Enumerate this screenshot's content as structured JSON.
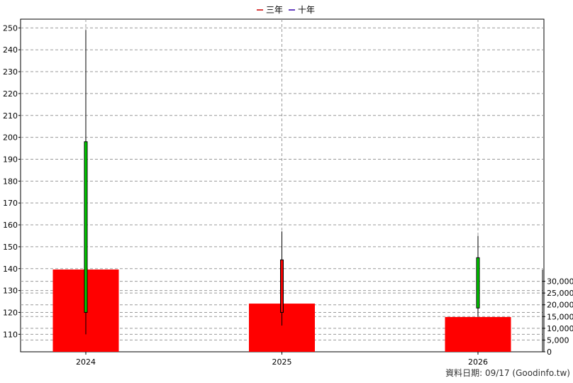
{
  "chart_data": {
    "type": "candlestick_with_bars",
    "legend": [
      {
        "label": "三年",
        "color": "#cc0000"
      },
      {
        "label": "十年",
        "color": "#3300aa"
      }
    ],
    "categories": [
      "2024",
      "2025",
      "2026"
    ],
    "price_axis": {
      "ylim": [
        102,
        254
      ],
      "ticks": [
        110,
        120,
        130,
        140,
        150,
        160,
        170,
        180,
        190,
        200,
        210,
        220,
        230,
        240,
        250
      ]
    },
    "volume_axis": {
      "ylim": [
        0,
        35000
      ],
      "ticks": [
        0,
        5000,
        10000,
        15000,
        20000,
        25000,
        30000
      ],
      "tick_labels": [
        "0",
        "5,000",
        "10,000",
        "15,000",
        "20,000",
        "25,000",
        "30,000"
      ]
    },
    "candles": [
      {
        "x": "2024",
        "open": 120,
        "close": 198,
        "high": 249,
        "low": 110,
        "color": "#00cc00"
      },
      {
        "x": "2025",
        "open": 144,
        "close": 120,
        "high": 157,
        "low": 114,
        "color": "#ee0000"
      },
      {
        "x": "2026",
        "open": 122,
        "close": 145,
        "high": 155,
        "low": 118,
        "color": "#00cc00"
      }
    ],
    "volumes": [
      {
        "x": "2024",
        "value": 35000
      },
      {
        "x": "2025",
        "value": 20500
      },
      {
        "x": "2026",
        "value": 14800
      }
    ],
    "bar_color": "#ff0000",
    "grid": true
  },
  "footer": {
    "text": "資料日期: 09/17  (Goodinfo.tw)"
  }
}
